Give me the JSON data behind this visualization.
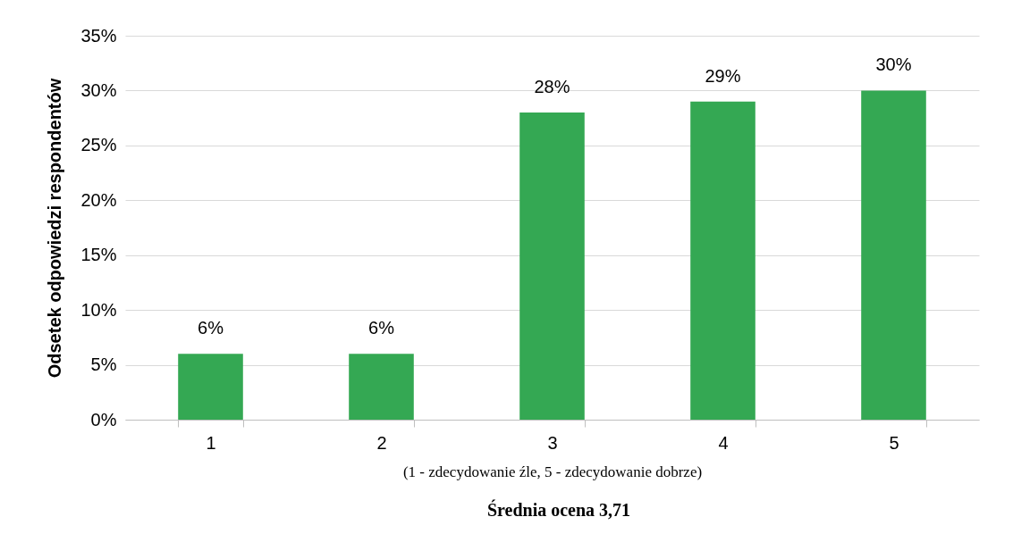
{
  "chart_data": {
    "type": "bar",
    "ylabel": "Odsetek odpowiedzi respondentów",
    "xlabel": "(1 - zdecydowanie źle, 5 - zdecydowanie dobrze)",
    "annotations": [
      "Średnia ocena 3,71"
    ],
    "categories": [
      "1",
      "2",
      "3",
      "4",
      "5"
    ],
    "values": [
      6,
      6,
      28,
      29,
      30
    ],
    "value_labels": [
      "6%",
      "6%",
      "28%",
      "29%",
      "30%"
    ],
    "color": "#34a853",
    "ylim": [
      0,
      35
    ],
    "yticks": [
      {
        "value": 0,
        "label": "0%"
      },
      {
        "value": 5,
        "label": "5%"
      },
      {
        "value": 10,
        "label": "10%"
      },
      {
        "value": 15,
        "label": "15%"
      },
      {
        "value": 20,
        "label": "20%"
      },
      {
        "value": 25,
        "label": "25%"
      },
      {
        "value": 30,
        "label": "30%"
      },
      {
        "value": 35,
        "label": "35%"
      }
    ],
    "grid": "y"
  }
}
